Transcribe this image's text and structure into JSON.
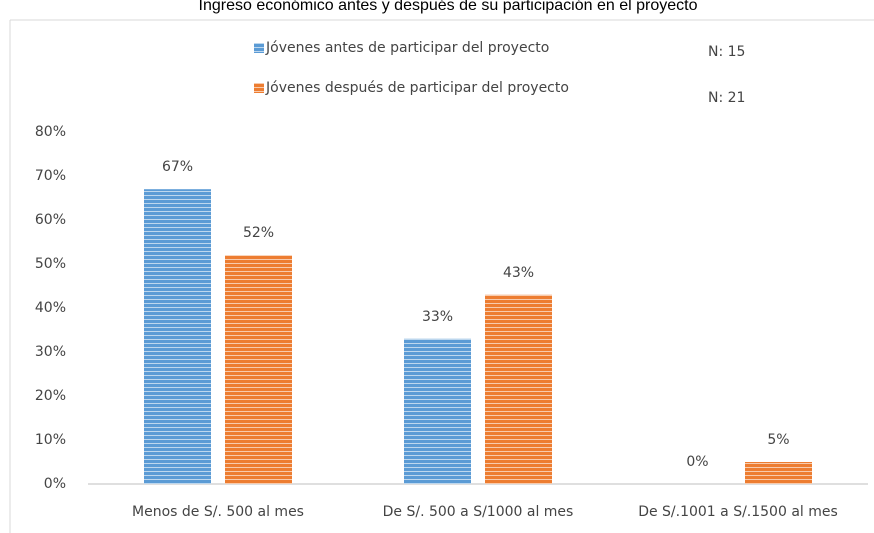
{
  "chart_data": {
    "type": "bar",
    "title": "Ingreso económico antes y después de su participación en el proyecto",
    "categories": [
      "Menos de S/. 500 al mes",
      "De S/. 500 a S/1000 al mes",
      "De S/.1001 a S/.1500 al mes"
    ],
    "series": [
      {
        "name": "Jóvenes antes de participar del proyecto",
        "color": "#5b9bd5",
        "values": [
          67,
          33,
          0
        ],
        "value_labels": [
          "67%",
          "33%",
          "0%"
        ]
      },
      {
        "name": "Jóvenes después de participar del proyecto",
        "color": "#ed7d31",
        "values": [
          52,
          43,
          5
        ],
        "value_labels": [
          "52%",
          "43%",
          "5%"
        ]
      }
    ],
    "annotations": [
      "N: 15",
      "N: 21"
    ],
    "ylim": [
      0,
      80
    ],
    "yticks": [
      {
        "value": 0,
        "label": "0%"
      },
      {
        "value": 10,
        "label": "10%"
      },
      {
        "value": 20,
        "label": "20%"
      },
      {
        "value": 30,
        "label": "30%"
      },
      {
        "value": 40,
        "label": "40%"
      },
      {
        "value": 50,
        "label": "50%"
      },
      {
        "value": 60,
        "label": "60%"
      },
      {
        "value": 70,
        "label": "70%"
      },
      {
        "value": 80,
        "label": "80%"
      }
    ],
    "grid": false,
    "legend": "top"
  }
}
